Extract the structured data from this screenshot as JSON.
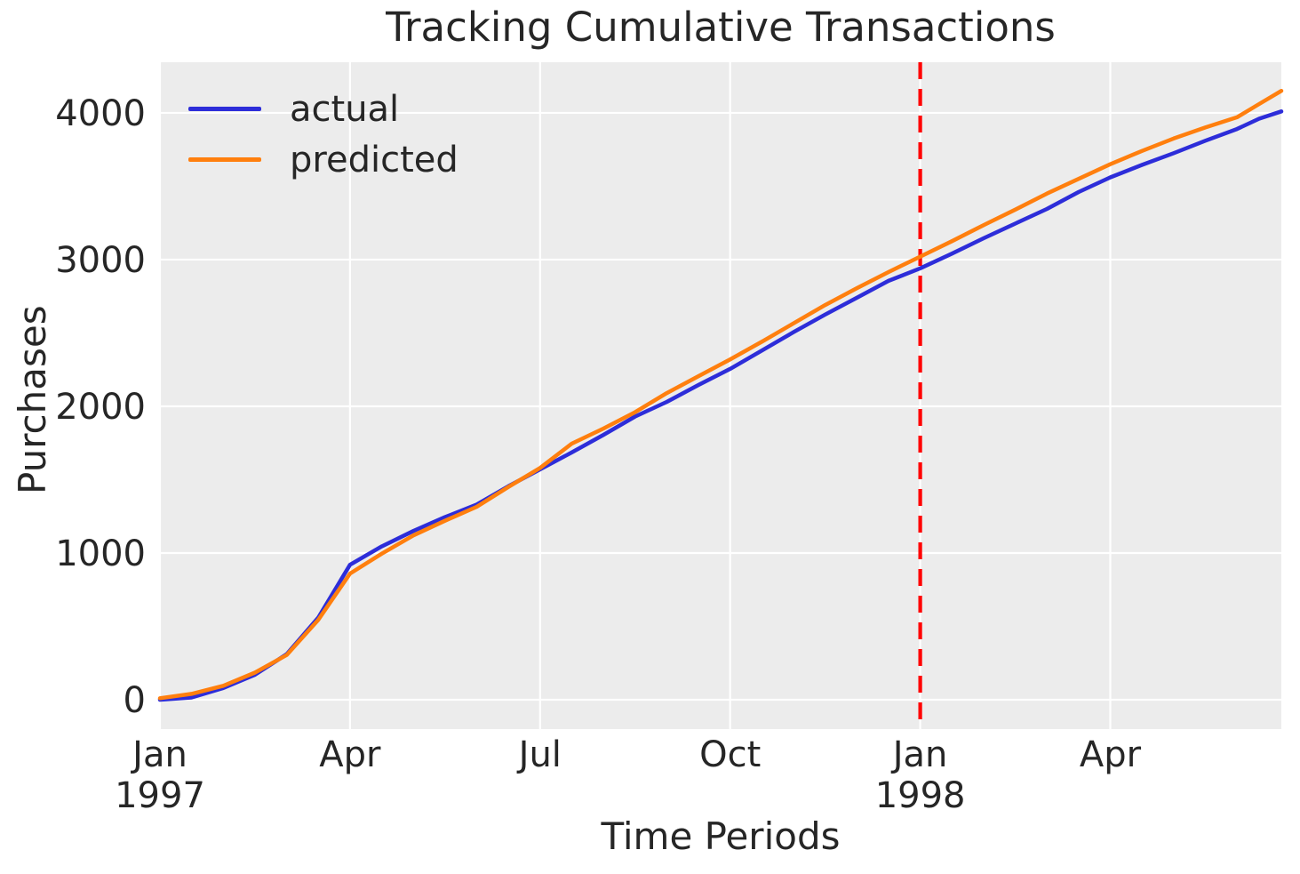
{
  "chart_data": {
    "type": "line",
    "title": "Tracking Cumulative Transactions",
    "xlabel": "Time Periods",
    "ylabel": "Purchases",
    "x_unit": "months since Jan 1997",
    "xlim": [
      0,
      17.7
    ],
    "ylim": [
      -200,
      4345
    ],
    "grid": true,
    "plot_bg_color": "#ececec",
    "grid_color": "#ffffff",
    "text_color": "#262626",
    "x_ticks": [
      {
        "pos": 0,
        "label": "Jan",
        "sublabel": "1997"
      },
      {
        "pos": 3,
        "label": "Apr",
        "sublabel": ""
      },
      {
        "pos": 6,
        "label": "Jul",
        "sublabel": ""
      },
      {
        "pos": 9,
        "label": "Oct",
        "sublabel": ""
      },
      {
        "pos": 12,
        "label": "Jan",
        "sublabel": "1998"
      },
      {
        "pos": 15,
        "label": "Apr",
        "sublabel": ""
      }
    ],
    "y_ticks": [
      0,
      1000,
      2000,
      3000,
      4000
    ],
    "legend": {
      "position": "upper-left",
      "items": [
        {
          "label": "actual",
          "color": "#2d2dd9"
        },
        {
          "label": "predicted",
          "color": "#ff7f0e"
        }
      ]
    },
    "cutoff_line": {
      "pos": 12,
      "color": "#ff0000",
      "style": "dashed"
    },
    "x": [
      0,
      0.5,
      1,
      1.5,
      2,
      2.5,
      3,
      3.5,
      4,
      4.5,
      5,
      5.5,
      6,
      6.5,
      7,
      7.5,
      8,
      8.5,
      9,
      9.5,
      10,
      10.5,
      11,
      11.5,
      12,
      12.5,
      13,
      13.5,
      14,
      14.5,
      15,
      15.5,
      16,
      16.5,
      17,
      17.35,
      17.7
    ],
    "series": [
      {
        "name": "actual",
        "color": "#2d2dd9",
        "values": [
          0,
          15,
          80,
          170,
          310,
          560,
          920,
          1045,
          1150,
          1245,
          1330,
          1455,
          1570,
          1685,
          1805,
          1930,
          2030,
          2145,
          2255,
          2380,
          2505,
          2625,
          2740,
          2855,
          2940,
          3040,
          3145,
          3245,
          3345,
          3460,
          3560,
          3645,
          3725,
          3810,
          3890,
          3960,
          4010
        ]
      },
      {
        "name": "predicted",
        "color": "#ff7f0e",
        "values": [
          10,
          40,
          95,
          185,
          305,
          545,
          860,
          995,
          1120,
          1220,
          1315,
          1450,
          1580,
          1745,
          1848,
          1960,
          2090,
          2205,
          2320,
          2440,
          2565,
          2690,
          2805,
          2915,
          3020,
          3125,
          3235,
          3340,
          3450,
          3550,
          3650,
          3740,
          3825,
          3900,
          3970,
          4060,
          4150
        ]
      }
    ]
  }
}
